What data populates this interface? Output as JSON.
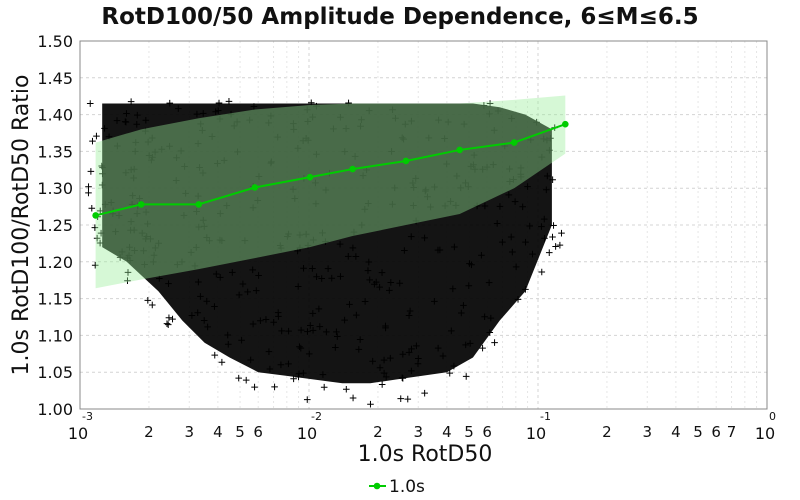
{
  "chart_data": {
    "type": "scatter",
    "title": "RotD100/50 Amplitude Dependence, 6≤M≤6.5",
    "xlabel": "1.0s RotD50",
    "ylabel": "1.0s RotD100/RotD50 Ratio",
    "x_scale": "log",
    "xlim": [
      0.001,
      1.0
    ],
    "ylim": [
      1.0,
      1.5
    ],
    "y_ticks": [
      "1.00",
      "1.05",
      "1.10",
      "1.15",
      "1.20",
      "1.25",
      "1.30",
      "1.35",
      "1.40",
      "1.45",
      "1.50"
    ],
    "x_major_ticks": [
      {
        "base": "10",
        "exp": "-3"
      },
      {
        "base": "10",
        "exp": "-2"
      },
      {
        "base": "10",
        "exp": "-1"
      },
      {
        "base": "10",
        "exp": "0"
      }
    ],
    "x_minor_labels": [
      "2",
      "3",
      "4",
      "5",
      "6",
      "2",
      "3",
      "4",
      "5",
      "6",
      "2",
      "3",
      "4",
      "5",
      "6",
      "7"
    ],
    "grid": true,
    "legend_position": "bottom-center",
    "series": [
      {
        "name": "1.0s",
        "color": "#00cc00",
        "x": [
          0.00117,
          0.00185,
          0.0033,
          0.0058,
          0.0101,
          0.0155,
          0.0265,
          0.0455,
          0.0787,
          0.1316
        ],
        "y": [
          1.263,
          1.278,
          1.278,
          1.301,
          1.315,
          1.326,
          1.337,
          1.352,
          1.362,
          1.387
        ]
      }
    ],
    "band": {
      "color": "#99ee99",
      "x": [
        0.00117,
        0.00185,
        0.0033,
        0.0058,
        0.0101,
        0.0155,
        0.0265,
        0.0455,
        0.0787,
        0.1316
      ],
      "upper": [
        1.362,
        1.38,
        1.395,
        1.407,
        1.413,
        1.415,
        1.415,
        1.415,
        1.42,
        1.426
      ],
      "lower": [
        1.164,
        1.176,
        1.19,
        1.205,
        1.22,
        1.235,
        1.25,
        1.265,
        1.3,
        1.347
      ]
    },
    "scatter": {
      "marker": "+",
      "color": "#000000",
      "cloud_color": "#000000",
      "cloud_x": [
        0.00125,
        0.0016,
        0.0022,
        0.0028,
        0.0035,
        0.0045,
        0.006,
        0.008,
        0.0105,
        0.014,
        0.0185,
        0.024,
        0.031,
        0.04,
        0.052,
        0.068,
        0.088,
        0.115
      ],
      "cloud_upper": [
        1.415,
        1.415,
        1.415,
        1.415,
        1.415,
        1.415,
        1.415,
        1.415,
        1.415,
        1.415,
        1.415,
        1.415,
        1.415,
        1.415,
        1.415,
        1.41,
        1.4,
        1.38
      ],
      "cloud_lower": [
        1.22,
        1.2,
        1.16,
        1.12,
        1.09,
        1.07,
        1.05,
        1.045,
        1.04,
        1.035,
        1.035,
        1.04,
        1.045,
        1.05,
        1.07,
        1.12,
        1.16,
        1.25
      ]
    }
  }
}
